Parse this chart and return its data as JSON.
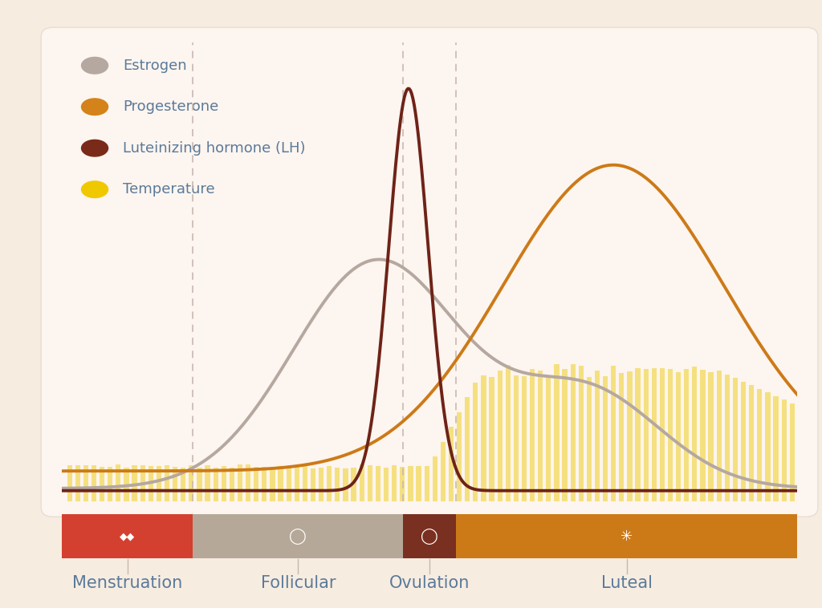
{
  "bg_outer": "#f7ece0",
  "bg_chart": "#fdf5ef",
  "chart_border": "#e8ddd4",
  "legend_text_color": "#5a7a9a",
  "legend_fontsize": 13,
  "colors": {
    "estrogen": "#b5a8a0",
    "progesterone": "#cc7a18",
    "lh": "#6e2318",
    "temperature_bar": "#f5e080"
  },
  "legend_dot_colors": {
    "estrogen": "#b5a8a0",
    "progesterone": "#d4821a",
    "lh": "#7a2a18",
    "temperature": "#f0c800"
  },
  "phase_colors": {
    "menstruation": "#d44030",
    "follicular": "#b5a898",
    "ovulation_marker": "#7a3020",
    "luteal": "#cc7a18"
  },
  "phase_label_color": "#5a7a9a",
  "phase_label_fontsize": 15,
  "vline_color": "#c8b8b0",
  "line_width": 2.8,
  "dashed_vline_positions": [
    5,
    13,
    15
  ],
  "total_days": 28,
  "phases": [
    {
      "name": "menstruation",
      "start": 0,
      "end": 5,
      "color": "#d44030"
    },
    {
      "name": "follicular",
      "start": 5,
      "end": 13,
      "color": "#b5a898"
    },
    {
      "name": "ovulation",
      "start": 13,
      "end": 15,
      "color": "#7a3020"
    },
    {
      "name": "luteal",
      "start": 15,
      "end": 28,
      "color": "#cc7a18"
    }
  ],
  "phase_label_centers": [
    2.5,
    9.0,
    14.0,
    21.5
  ],
  "phase_labels": [
    "Menstruation",
    "Follicular",
    "Ovulation",
    "Luteal"
  ]
}
